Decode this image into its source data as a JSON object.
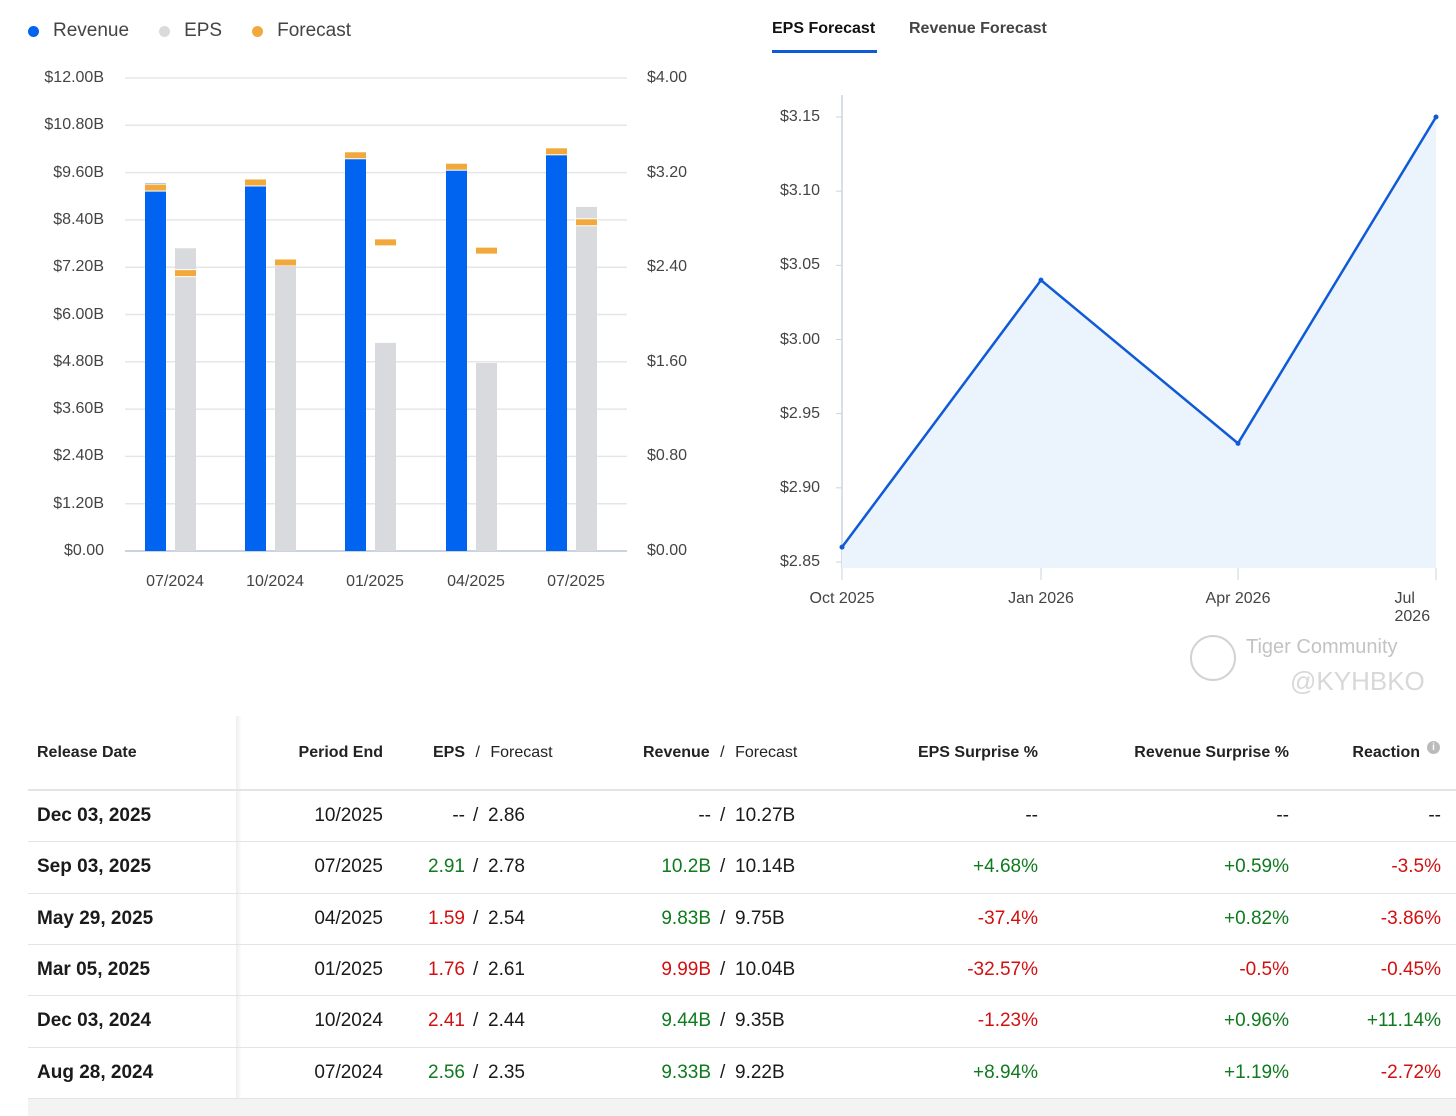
{
  "legend": [
    {
      "label": "Revenue",
      "color": "#0064f0"
    },
    {
      "label": "EPS",
      "color": "#d9dadd"
    },
    {
      "label": "Forecast",
      "color": "#f2a93b"
    }
  ],
  "tabs": [
    {
      "label": "EPS Forecast",
      "active": true
    },
    {
      "label": "Revenue Forecast",
      "active": false
    }
  ],
  "chart_data": [
    {
      "type": "bar",
      "title": "",
      "categories": [
        "07/2024",
        "10/2024",
        "01/2025",
        "04/2025",
        "07/2025"
      ],
      "left_axis": {
        "ticks": [
          "$0.00",
          "$1.20B",
          "$2.40B",
          "$3.60B",
          "$4.80B",
          "$6.00B",
          "$7.20B",
          "$8.40B",
          "$9.60B",
          "$10.80B",
          "$12.00B"
        ],
        "ylim": [
          0,
          12
        ]
      },
      "right_axis": {
        "ticks": [
          "$0.00",
          "$0.80",
          "$1.60",
          "$2.40",
          "$3.20",
          "$4.00"
        ],
        "ylim": [
          0,
          4
        ]
      },
      "series": [
        {
          "name": "Revenue",
          "unit": "B",
          "values": [
            9.33,
            9.44,
            9.99,
            9.83,
            10.2
          ],
          "forecast": [
            9.22,
            9.35,
            10.04,
            9.75,
            10.14
          ]
        },
        {
          "name": "EPS",
          "values": [
            2.56,
            2.41,
            1.76,
            1.59,
            2.91
          ],
          "forecast": [
            2.35,
            2.44,
            2.61,
            2.54,
            2.78
          ]
        }
      ]
    },
    {
      "type": "area",
      "title": "EPS Forecast",
      "x": [
        "Oct 2025",
        "Jan 2026",
        "Apr 2026",
        "Jul 2026"
      ],
      "y": [
        2.86,
        3.04,
        2.93,
        3.15
      ],
      "yticks": [
        "$2.85",
        "$2.90",
        "$2.95",
        "$3.00",
        "$3.05",
        "$3.10",
        "$3.15"
      ],
      "ylim": [
        2.85,
        3.15
      ]
    }
  ],
  "table": {
    "headers": {
      "release": "Release Date",
      "period": "Period End",
      "eps": "EPS",
      "eps_fc": "Forecast",
      "rev": "Revenue",
      "rev_fc": "Forecast",
      "eps_s": "EPS Surprise %",
      "rev_s": "Revenue Surprise %",
      "reaction": "Reaction"
    },
    "sep": "/",
    "rows": [
      {
        "date": "Dec 03, 2025",
        "period": "10/2025",
        "eps": "--",
        "eps_fc": "2.86",
        "rev": "--",
        "rev_fc": "10.27B",
        "eps_s": "--",
        "rev_s": "--",
        "reaction": "--",
        "c": [
          "",
          "",
          "",
          "",
          ""
        ]
      },
      {
        "date": "Sep 03, 2025",
        "period": "07/2025",
        "eps": "2.91",
        "eps_fc": "2.78",
        "rev": "10.2B",
        "rev_fc": "10.14B",
        "eps_s": "+4.68%",
        "rev_s": "+0.59%",
        "reaction": "-3.5%",
        "c": [
          "g",
          "g",
          "g",
          "g",
          "rd"
        ]
      },
      {
        "date": "May 29, 2025",
        "period": "04/2025",
        "eps": "1.59",
        "eps_fc": "2.54",
        "rev": "9.83B",
        "rev_fc": "9.75B",
        "eps_s": "-37.4%",
        "rev_s": "+0.82%",
        "reaction": "-3.86%",
        "c": [
          "rd",
          "g",
          "rd",
          "g",
          "rd"
        ]
      },
      {
        "date": "Mar 05, 2025",
        "period": "01/2025",
        "eps": "1.76",
        "eps_fc": "2.61",
        "rev": "9.99B",
        "rev_fc": "10.04B",
        "eps_s": "-32.57%",
        "rev_s": "-0.5%",
        "reaction": "-0.45%",
        "c": [
          "rd",
          "rd",
          "rd",
          "rd",
          "rd"
        ]
      },
      {
        "date": "Dec 03, 2024",
        "period": "10/2024",
        "eps": "2.41",
        "eps_fc": "2.44",
        "rev": "9.44B",
        "rev_fc": "9.35B",
        "eps_s": "-1.23%",
        "rev_s": "+0.96%",
        "reaction": "+11.14%",
        "c": [
          "rd",
          "g",
          "rd",
          "g",
          "g"
        ]
      },
      {
        "date": "Aug 28, 2024",
        "period": "07/2024",
        "eps": "2.56",
        "eps_fc": "2.35",
        "rev": "9.33B",
        "rev_fc": "9.22B",
        "eps_s": "+8.94%",
        "rev_s": "+1.19%",
        "reaction": "-2.72%",
        "c": [
          "g",
          "g",
          "g",
          "g",
          "rd"
        ]
      }
    ]
  },
  "watermark": {
    "line1": "Tiger Community",
    "line2": "@KYHBKO"
  }
}
